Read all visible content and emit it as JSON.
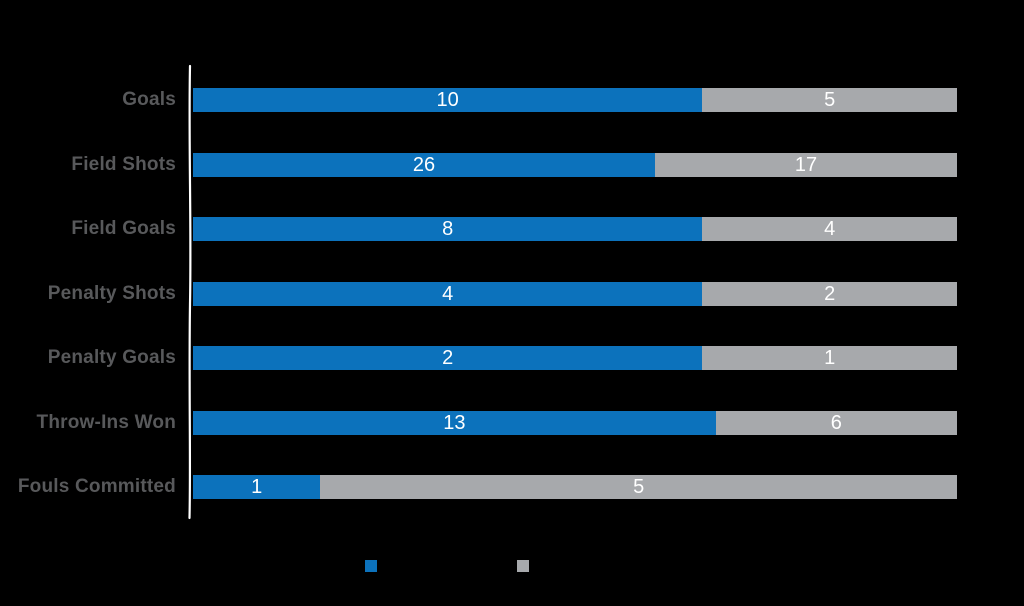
{
  "chart_data": {
    "type": "bar",
    "orientation": "horizontal",
    "stacked": "percent",
    "title": "",
    "xlabel": "",
    "ylabel": "",
    "grid": false,
    "categories": [
      "Goals",
      "Field Shots",
      "Field Goals",
      "Penalty Shots",
      "Penalty Goals",
      "Throw-Ins Won",
      "Fouls Committed"
    ],
    "series": [
      {
        "name": "blue-series",
        "color": "#0c72bc",
        "values": [
          10,
          26,
          8,
          4,
          2,
          13,
          1
        ]
      },
      {
        "name": "gray-series",
        "color": "#a7a9ac",
        "values": [
          5,
          17,
          4,
          2,
          1,
          6,
          5
        ]
      }
    ],
    "legend": {
      "position": "bottom",
      "labels_visible": false,
      "swatches": [
        {
          "name": "blue-series",
          "color": "#0c72bc"
        },
        {
          "name": "gray-series",
          "color": "#a7a9ac"
        }
      ]
    },
    "value_label_color": "#ffffff",
    "category_label_color": "#58595b",
    "axis_line_color": "#ffffff",
    "background_color": "#000000"
  },
  "layout_values": {
    "row_top_start": 88,
    "row_step": 64.5
  }
}
